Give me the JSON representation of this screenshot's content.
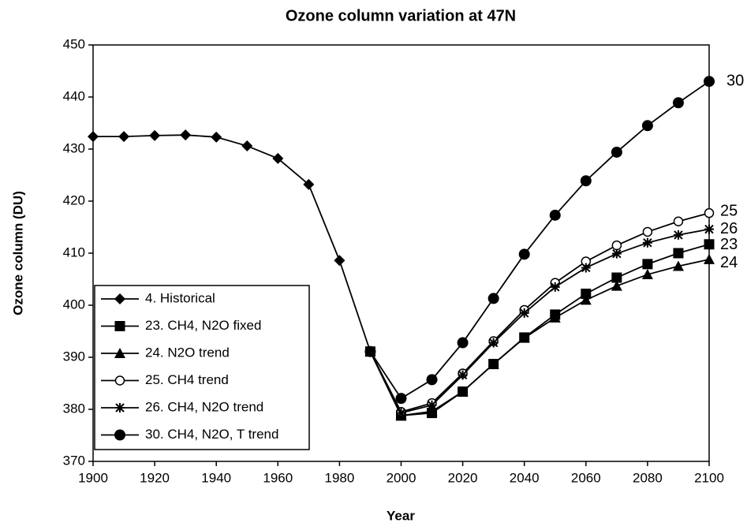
{
  "chart_data": {
    "type": "line",
    "title": "Ozone column variation at 47N",
    "xlabel": "Year",
    "ylabel": "Ozone column (DU)",
    "xlim": [
      1900,
      2100
    ],
    "xticks": [
      1900,
      1920,
      1940,
      1960,
      1980,
      2000,
      2020,
      2040,
      2060,
      2080,
      2100
    ],
    "ylim": [
      370,
      450
    ],
    "yticks": [
      370,
      380,
      390,
      400,
      410,
      420,
      430,
      440,
      450
    ],
    "grid": false,
    "legend": "lower left",
    "series": [
      {
        "name": "4. Historical",
        "color": "#000000",
        "marker": "diamond",
        "x": [
          1900,
          1910,
          1920,
          1930,
          1940,
          1950,
          1960,
          1970,
          1980,
          1990
        ],
        "values": [
          432.4,
          432.4,
          432.6,
          432.7,
          432.3,
          430.6,
          428.2,
          423.2,
          408.6,
          391.1
        ]
      },
      {
        "name": "23. CH4, N2O fixed",
        "color": "#000000",
        "marker": "square",
        "end_label": "23",
        "x": [
          1990,
          2000,
          2010,
          2020,
          2030,
          2040,
          2050,
          2060,
          2070,
          2080,
          2090,
          2100
        ],
        "values": [
          391.1,
          378.8,
          379.3,
          383.4,
          388.7,
          393.8,
          398.2,
          402.2,
          405.3,
          407.9,
          410.0,
          411.7
        ]
      },
      {
        "name": "24. N2O trend",
        "color": "#000000",
        "marker": "triangle",
        "end_label": "24",
        "x": [
          1990,
          2000,
          2010,
          2020,
          2030,
          2040,
          2050,
          2060,
          2070,
          2080,
          2090,
          2100
        ],
        "values": [
          391.1,
          378.8,
          379.6,
          383.4,
          388.7,
          393.7,
          397.6,
          401.0,
          403.7,
          405.9,
          407.5,
          408.8
        ]
      },
      {
        "name": "25. CH4 trend",
        "color": "#000000",
        "marker": "open-circle",
        "end_label": "25",
        "x": [
          1990,
          2000,
          2010,
          2020,
          2030,
          2040,
          2050,
          2060,
          2070,
          2080,
          2090,
          2100
        ],
        "values": [
          391.1,
          379.5,
          381.2,
          386.9,
          393.1,
          399.1,
          404.3,
          408.4,
          411.5,
          414.1,
          416.1,
          417.7
        ]
      },
      {
        "name": "26. CH4, N2O trend",
        "color": "#000000",
        "marker": "asterisk",
        "end_label": "26",
        "x": [
          1990,
          2000,
          2010,
          2020,
          2030,
          2040,
          2050,
          2060,
          2070,
          2080,
          2090,
          2100
        ],
        "values": [
          391.1,
          379.3,
          380.8,
          386.6,
          392.8,
          398.5,
          403.5,
          407.2,
          409.9,
          412.0,
          413.5,
          414.6
        ]
      },
      {
        "name": "30. CH4, N2O, T trend",
        "color": "#000000",
        "marker": "circle",
        "end_label": "30",
        "x": [
          1990,
          2000,
          2010,
          2020,
          2030,
          2040,
          2050,
          2060,
          2070,
          2080,
          2090,
          2100
        ],
        "values": [
          391.1,
          382.1,
          385.7,
          392.8,
          401.3,
          409.8,
          417.3,
          423.9,
          429.4,
          434.5,
          438.9,
          443.0
        ]
      }
    ]
  }
}
